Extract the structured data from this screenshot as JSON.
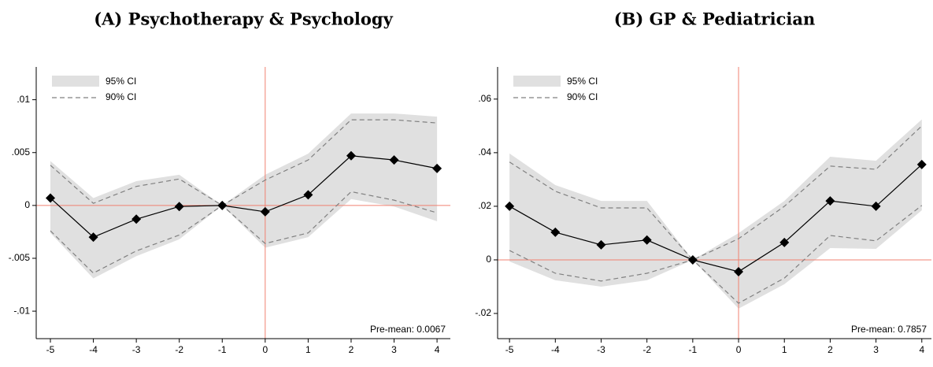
{
  "chart_data": [
    {
      "type": "line",
      "title": "(A) Psychotherapy & Psychology",
      "x": [
        -5,
        -4,
        -3,
        -2,
        -1,
        0,
        1,
        2,
        3,
        4
      ],
      "values": [
        0.0007,
        -0.003,
        -0.0013,
        -0.0001,
        0,
        -0.0006,
        0.001,
        0.0047,
        0.0043,
        0.0035
      ],
      "color": "#000000",
      "ci95": {
        "name": "95% CI",
        "color": "#e0e0e0",
        "lower": [
          -0.0026,
          -0.0069,
          -0.0048,
          -0.0032,
          0,
          -0.004,
          -0.003,
          0.0006,
          -0.0001,
          -0.0015
        ],
        "upper": [
          0.0042,
          0.0007,
          0.0023,
          0.0029,
          0,
          0.0029,
          0.0049,
          0.0087,
          0.0087,
          0.0084
        ]
      },
      "ci90": {
        "name": "90% CI",
        "color": "#808080",
        "lower": [
          -0.0024,
          -0.0064,
          -0.0043,
          -0.0028,
          0,
          -0.0036,
          -0.0026,
          0.0013,
          0.0005,
          -0.0007
        ],
        "upper": [
          0.0038,
          0.0002,
          0.0018,
          0.0025,
          0,
          0.0024,
          0.0043,
          0.0081,
          0.0081,
          0.0078
        ]
      },
      "reference_x": 0,
      "reference_y": 0,
      "reference_color": "#f08070",
      "annotation": "Pre-mean: 0.0067",
      "xlim": [
        -5.33,
        4.31
      ],
      "xticks": [
        -5,
        -4,
        -3,
        -2,
        -1,
        0,
        1,
        2,
        3,
        4
      ],
      "ylim": [
        -0.0126,
        0.0131
      ],
      "yticks": [
        {
          "value": -0.01,
          "label": "-.01"
        },
        {
          "value": -0.005,
          "label": "-.005"
        },
        0,
        {
          "value": 0.005,
          "label": ".005"
        },
        {
          "value": 0.01,
          "label": ".01"
        }
      ],
      "legend": "top-left"
    },
    {
      "type": "line",
      "title": "(B) GP & Pediatrician",
      "x": [
        -5,
        -4,
        -3,
        -2,
        -1,
        0,
        1,
        2,
        3,
        4
      ],
      "values": [
        0.02,
        0.0103,
        0.0056,
        0.0074,
        0,
        -0.0044,
        0.0065,
        0.022,
        0.02,
        0.0356
      ],
      "color": "#000000",
      "ci95": {
        "name": "95% CI",
        "color": "#e0e0e0",
        "lower": [
          -0.0006,
          -0.0076,
          -0.01,
          -0.0076,
          0,
          -0.0182,
          -0.0091,
          0.0044,
          0.0041,
          0.0185
        ],
        "upper": [
          0.0397,
          0.0279,
          0.022,
          0.022,
          0,
          0.01,
          0.022,
          0.0385,
          0.037,
          0.0524
        ]
      },
      "ci90": {
        "name": "90% CI",
        "color": "#808080",
        "lower": [
          0.0035,
          -0.005,
          -0.0079,
          -0.005,
          0,
          -0.0162,
          -0.0068,
          0.0091,
          0.0071,
          0.0203
        ],
        "upper": [
          0.0365,
          0.0256,
          0.0194,
          0.0194,
          0,
          0.0079,
          0.02,
          0.035,
          0.0338,
          0.05
        ]
      },
      "reference_x": 0,
      "reference_y": 0,
      "reference_color": "#f08070",
      "annotation": "Pre-mean: 0.7857",
      "xlim": [
        -5.26,
        4.21
      ],
      "xticks": [
        -5,
        -4,
        -3,
        -2,
        -1,
        0,
        1,
        2,
        3,
        4
      ],
      "ylim": [
        -0.0294,
        0.072
      ],
      "yticks": [
        {
          "value": -0.02,
          "label": "-.02"
        },
        0,
        {
          "value": 0.02,
          "label": ".02"
        },
        {
          "value": 0.04,
          "label": ".04"
        },
        {
          "value": 0.06,
          "label": ".06"
        }
      ],
      "legend": "top-left"
    }
  ]
}
